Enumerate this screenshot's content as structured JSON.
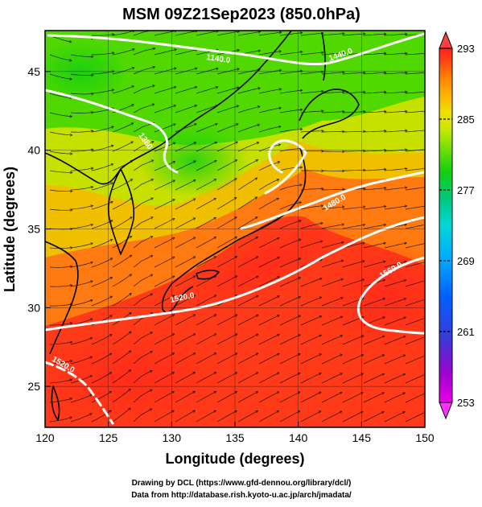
{
  "title": "MSM 09Z21Sep2023 (850.0hPa)",
  "x_axis": {
    "label": "Longitude (degrees)",
    "range": [
      120,
      150
    ],
    "ticks": [
      "120",
      "125",
      "130",
      "135",
      "140",
      "145",
      "150"
    ]
  },
  "y_axis": {
    "label": "Latitude  (degrees)",
    "range": [
      22.4,
      47.6
    ],
    "ticks": [
      "25",
      "30",
      "35",
      "40",
      "45"
    ]
  },
  "colorbar": {
    "min": 253,
    "max": 293,
    "ticks": [
      "293",
      "285",
      "277",
      "269",
      "261",
      "253"
    ],
    "colors": [
      "#e800e8",
      "#a000d0",
      "#3a3ad8",
      "#0060ff",
      "#00a8ff",
      "#00d8d8",
      "#00c878",
      "#10d010",
      "#78e000",
      "#c8e800",
      "#f0e000",
      "#ffb000",
      "#ff8000",
      "#ff4a10",
      "#ff2020"
    ]
  },
  "contours": [
    {
      "label": "1140.0"
    },
    {
      "label": "1380"
    },
    {
      "label": "1440.0"
    },
    {
      "label": "1480.0"
    },
    {
      "label": "1520.0"
    },
    {
      "label": "1560.0"
    },
    {
      "label": "1520.0"
    }
  ],
  "footer": {
    "line1": "Drawing by DCL (https://www.gfd-dennou.org/library/dcl/)",
    "line2": "Data from http://database.rish.kyoto-u.ac.jp/arch/jmadata/"
  }
}
